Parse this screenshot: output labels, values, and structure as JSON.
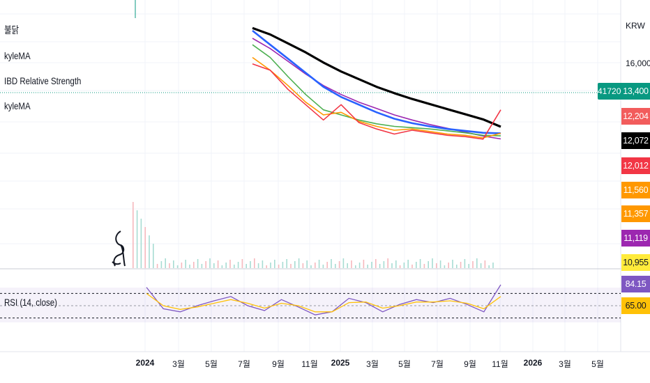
{
  "currency": "KRW",
  "legend": [
    "불닭",
    "kyleMA",
    "IBD Relative Strength",
    "kyleMA"
  ],
  "price_flag": "417200",
  "y_axis_labels": [
    "16,000"
  ],
  "badges": [
    {
      "text": "13,400",
      "color": "#089981"
    },
    {
      "text": "12,204",
      "color": "#f25c5c"
    },
    {
      "text": "12,072",
      "color": "#000000"
    },
    {
      "text": "12,012",
      "color": "#f23645"
    },
    {
      "text": "11,560",
      "color": "#ff9800"
    },
    {
      "text": "11,357",
      "color": "#ff9800"
    },
    {
      "text": "11,119",
      "color": "#9c27b0"
    },
    {
      "text": "10,955",
      "color": "#ffeb3b"
    }
  ],
  "rsi": {
    "title": "RSI (14, close)",
    "value_badge": "84.15",
    "signal_badge": "65.00"
  },
  "time_axis": [
    {
      "label": "2024",
      "major": true
    },
    {
      "label": "3월",
      "major": false
    },
    {
      "label": "5월",
      "major": false
    },
    {
      "label": "7월",
      "major": false
    },
    {
      "label": "9월",
      "major": false
    },
    {
      "label": "11월",
      "major": false
    },
    {
      "label": "2025",
      "major": true
    },
    {
      "label": "3월",
      "major": false
    },
    {
      "label": "5월",
      "major": false
    },
    {
      "label": "7월",
      "major": false
    },
    {
      "label": "9월",
      "major": false
    },
    {
      "label": "11월",
      "major": false
    },
    {
      "label": "2026",
      "major": true
    },
    {
      "label": "3월",
      "major": false
    },
    {
      "label": "5월",
      "major": false
    }
  ],
  "chart_data": [
    {
      "type": "line",
      "title": "",
      "x": [
        "2024-08",
        "2024-09",
        "2024-10",
        "2024-11",
        "2024-12",
        "2025-01",
        "2025-02",
        "2025-03",
        "2025-04",
        "2025-05",
        "2025-06",
        "2025-07",
        "2025-08",
        "2025-09",
        "2025-10"
      ],
      "series": [
        {
          "name": "kyleMA",
          "color": "#000000",
          "values": [
            19800,
            19300,
            18600,
            17900,
            17100,
            16400,
            15800,
            15200,
            14700,
            14250,
            13850,
            13450,
            13050,
            12650,
            12072
          ]
        },
        {
          "name": "",
          "color": "#9c27b0",
          "values": [
            19000,
            18200,
            17200,
            16200,
            15300,
            14600,
            14000,
            13500,
            13000,
            12600,
            12250,
            11950,
            11650,
            11350,
            11119
          ]
        },
        {
          "name": "",
          "color": "#2962ff",
          "values": [
            19600,
            18500,
            17400,
            16300,
            15200,
            14400,
            13800,
            13200,
            12700,
            12350,
            12100,
            11900,
            11750,
            11600,
            11560
          ]
        },
        {
          "name": "",
          "color": "#4caf50",
          "values": [
            18500,
            17500,
            16000,
            14600,
            13400,
            13000,
            12600,
            12300,
            12100,
            12000,
            11900,
            11750,
            11600,
            11400,
            11357
          ]
        },
        {
          "name": "",
          "color": "#ff9800",
          "values": [
            17500,
            16500,
            15300,
            14000,
            13000,
            13200,
            12500,
            12100,
            11800,
            11900,
            11700,
            11500,
            11400,
            11200,
            11560
          ]
        },
        {
          "name": "",
          "color": "#f23645",
          "values": [
            17000,
            16500,
            15000,
            13800,
            12600,
            13800,
            12400,
            11900,
            11500,
            11800,
            11600,
            11400,
            11300,
            11100,
            13400
          ]
        }
      ],
      "ylabel": "KRW",
      "grid": true
    },
    {
      "type": "line",
      "title": "RSI (14, close)",
      "x": [
        "2024-01",
        "2024-02",
        "2024-03",
        "2024-04",
        "2024-05",
        "2024-06",
        "2024-07",
        "2024-08",
        "2024-09",
        "2024-10",
        "2024-11",
        "2024-12",
        "2025-01",
        "2025-02",
        "2025-03",
        "2025-04",
        "2025-05",
        "2025-06",
        "2025-07",
        "2025-08",
        "2025-09",
        "2025-10"
      ],
      "series": [
        {
          "name": "RSI",
          "color": "#7e57c2",
          "values": [
            80,
            45,
            40,
            50,
            58,
            65,
            50,
            42,
            60,
            48,
            35,
            40,
            62,
            55,
            40,
            52,
            60,
            55,
            62,
            52,
            40,
            84.15
          ]
        },
        {
          "name": "",
          "color": "#ffc107",
          "values": [
            70,
            50,
            44,
            48,
            54,
            60,
            54,
            46,
            54,
            50,
            40,
            40,
            55,
            56,
            46,
            50,
            56,
            56,
            58,
            54,
            45,
            65
          ]
        }
      ],
      "ylim": [
        0,
        100
      ],
      "levels": [
        30,
        50,
        70
      ]
    }
  ]
}
